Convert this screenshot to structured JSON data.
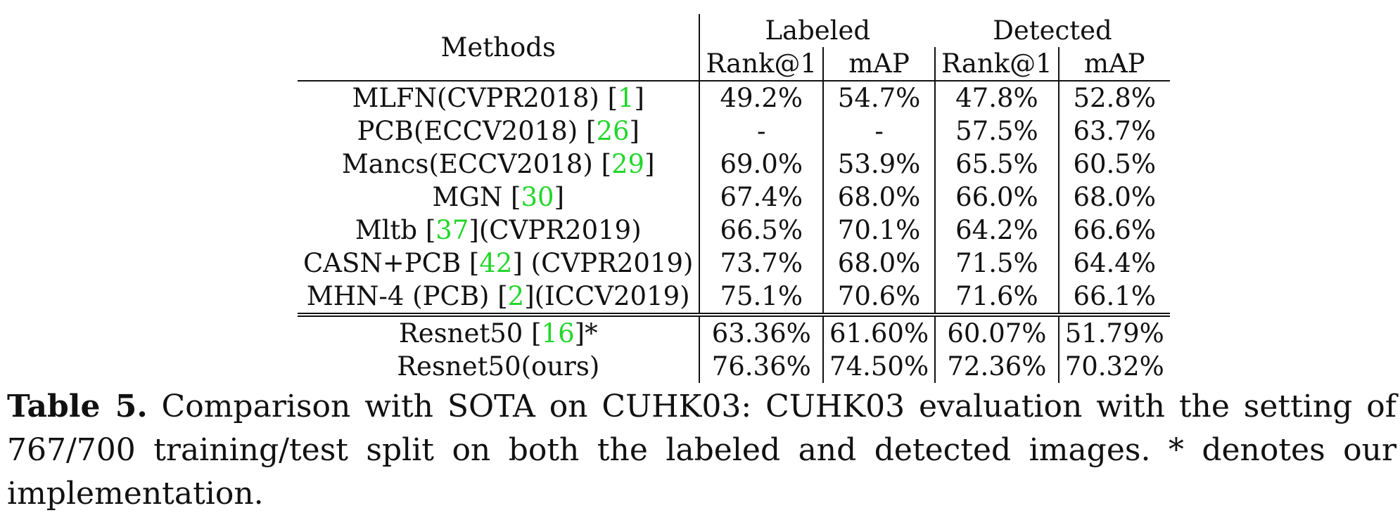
{
  "table": {
    "header": {
      "methods": "Methods",
      "groups": [
        "Labeled",
        "Detected"
      ],
      "subcols": [
        "Rank@1",
        "mAP",
        "Rank@1",
        "mAP"
      ]
    },
    "rows": [
      {
        "name": "MLFN(CVPR2018) ",
        "cite": "1",
        "suffix": "",
        "values": [
          "49.2%",
          "54.7%",
          "47.8%",
          "52.8%"
        ]
      },
      {
        "name": "PCB(ECCV2018) ",
        "cite": "26",
        "suffix": "",
        "values": [
          "-",
          "-",
          "57.5%",
          "63.7%"
        ]
      },
      {
        "name": "Mancs(ECCV2018) ",
        "cite": "29",
        "suffix": "",
        "values": [
          "69.0%",
          "53.9%",
          "65.5%",
          "60.5%"
        ]
      },
      {
        "name": "MGN ",
        "cite": "30",
        "suffix": "",
        "values": [
          "67.4%",
          "68.0%",
          "66.0%",
          "68.0%"
        ]
      },
      {
        "name": "Mltb ",
        "cite": "37",
        "suffix": "(CVPR2019)",
        "values": [
          "66.5%",
          "70.1%",
          "64.2%",
          "66.6%"
        ]
      },
      {
        "name": "CASN+PCB ",
        "cite": "42",
        "suffix": " (CVPR2019)",
        "values": [
          "73.7%",
          "68.0%",
          "71.5%",
          "64.4%"
        ]
      },
      {
        "name": "MHN-4 (PCB) ",
        "cite": "2",
        "suffix": "(ICCV2019)",
        "values": [
          "75.1%",
          "70.6%",
          "71.6%",
          "66.1%"
        ]
      }
    ],
    "bottom_rows": [
      {
        "name": "Resnet50 ",
        "cite": "16",
        "suffix": "*",
        "values": [
          "63.36%",
          "61.60%",
          "60.07%",
          "51.79%"
        ],
        "bold": false
      },
      {
        "name": "Resnet50(ours)",
        "cite": "",
        "suffix": "",
        "values": [
          "76.36%",
          "74.50%",
          "72.36%",
          "70.32%"
        ],
        "bold": true
      }
    ],
    "cite_color": "#22d62a"
  },
  "caption": {
    "label": "Table 5.",
    "text": " Comparison with SOTA on CUHK03: CUHK03 evaluation with the setting of 767/700 training/test split on both the labeled and detected images. * denotes our implementation."
  }
}
